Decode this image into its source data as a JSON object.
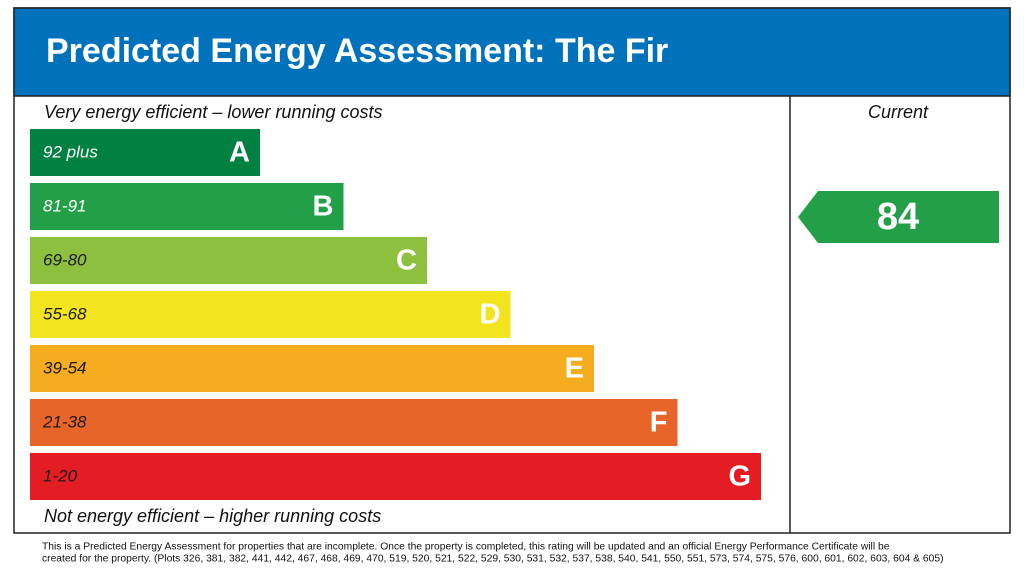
{
  "header": {
    "title": "Predicted Energy Assessment: The Fir"
  },
  "top_label": "Very energy efficient – lower running costs",
  "bottom_label": "Not energy efficient – higher running costs",
  "bands": [
    {
      "range": "92 plus",
      "letter": "A",
      "color": "#008041",
      "text_color": "#ffffff"
    },
    {
      "range": "81-91",
      "letter": "B",
      "color": "#23a047",
      "text_color": "#ffffff"
    },
    {
      "range": "69-80",
      "letter": "C",
      "color": "#8dc03f",
      "text_color": "#1a1a1a"
    },
    {
      "range": "55-68",
      "letter": "D",
      "color": "#f2e41e",
      "text_color": "#1a1a1a"
    },
    {
      "range": "39-54",
      "letter": "E",
      "color": "#f5ac1f",
      "text_color": "#1a1a1a"
    },
    {
      "range": "21-38",
      "letter": "F",
      "color": "#e8652a",
      "text_color": "#1a1a1a"
    },
    {
      "range": "1-20",
      "letter": "G",
      "color": "#e31d23",
      "text_color": "#1a1a1a"
    }
  ],
  "current": {
    "label": "Current",
    "value": 84,
    "color": "#23a047"
  },
  "footnote": [
    "This is a Predicted Energy Assessment for properties that are incomplete. Once the property is completed, this rating will be updated and an official Energy Performance Certificate will be",
    "created for the property. (Plots 326, 381, 382, 441, 442, 467, 468, 469, 470, 519, 520, 521, 522, 529, 530, 531, 532, 537, 538, 540, 541, 550, 551, 573, 574, 575, 576, 600, 601, 602, 603, 604 & 605)"
  ]
}
